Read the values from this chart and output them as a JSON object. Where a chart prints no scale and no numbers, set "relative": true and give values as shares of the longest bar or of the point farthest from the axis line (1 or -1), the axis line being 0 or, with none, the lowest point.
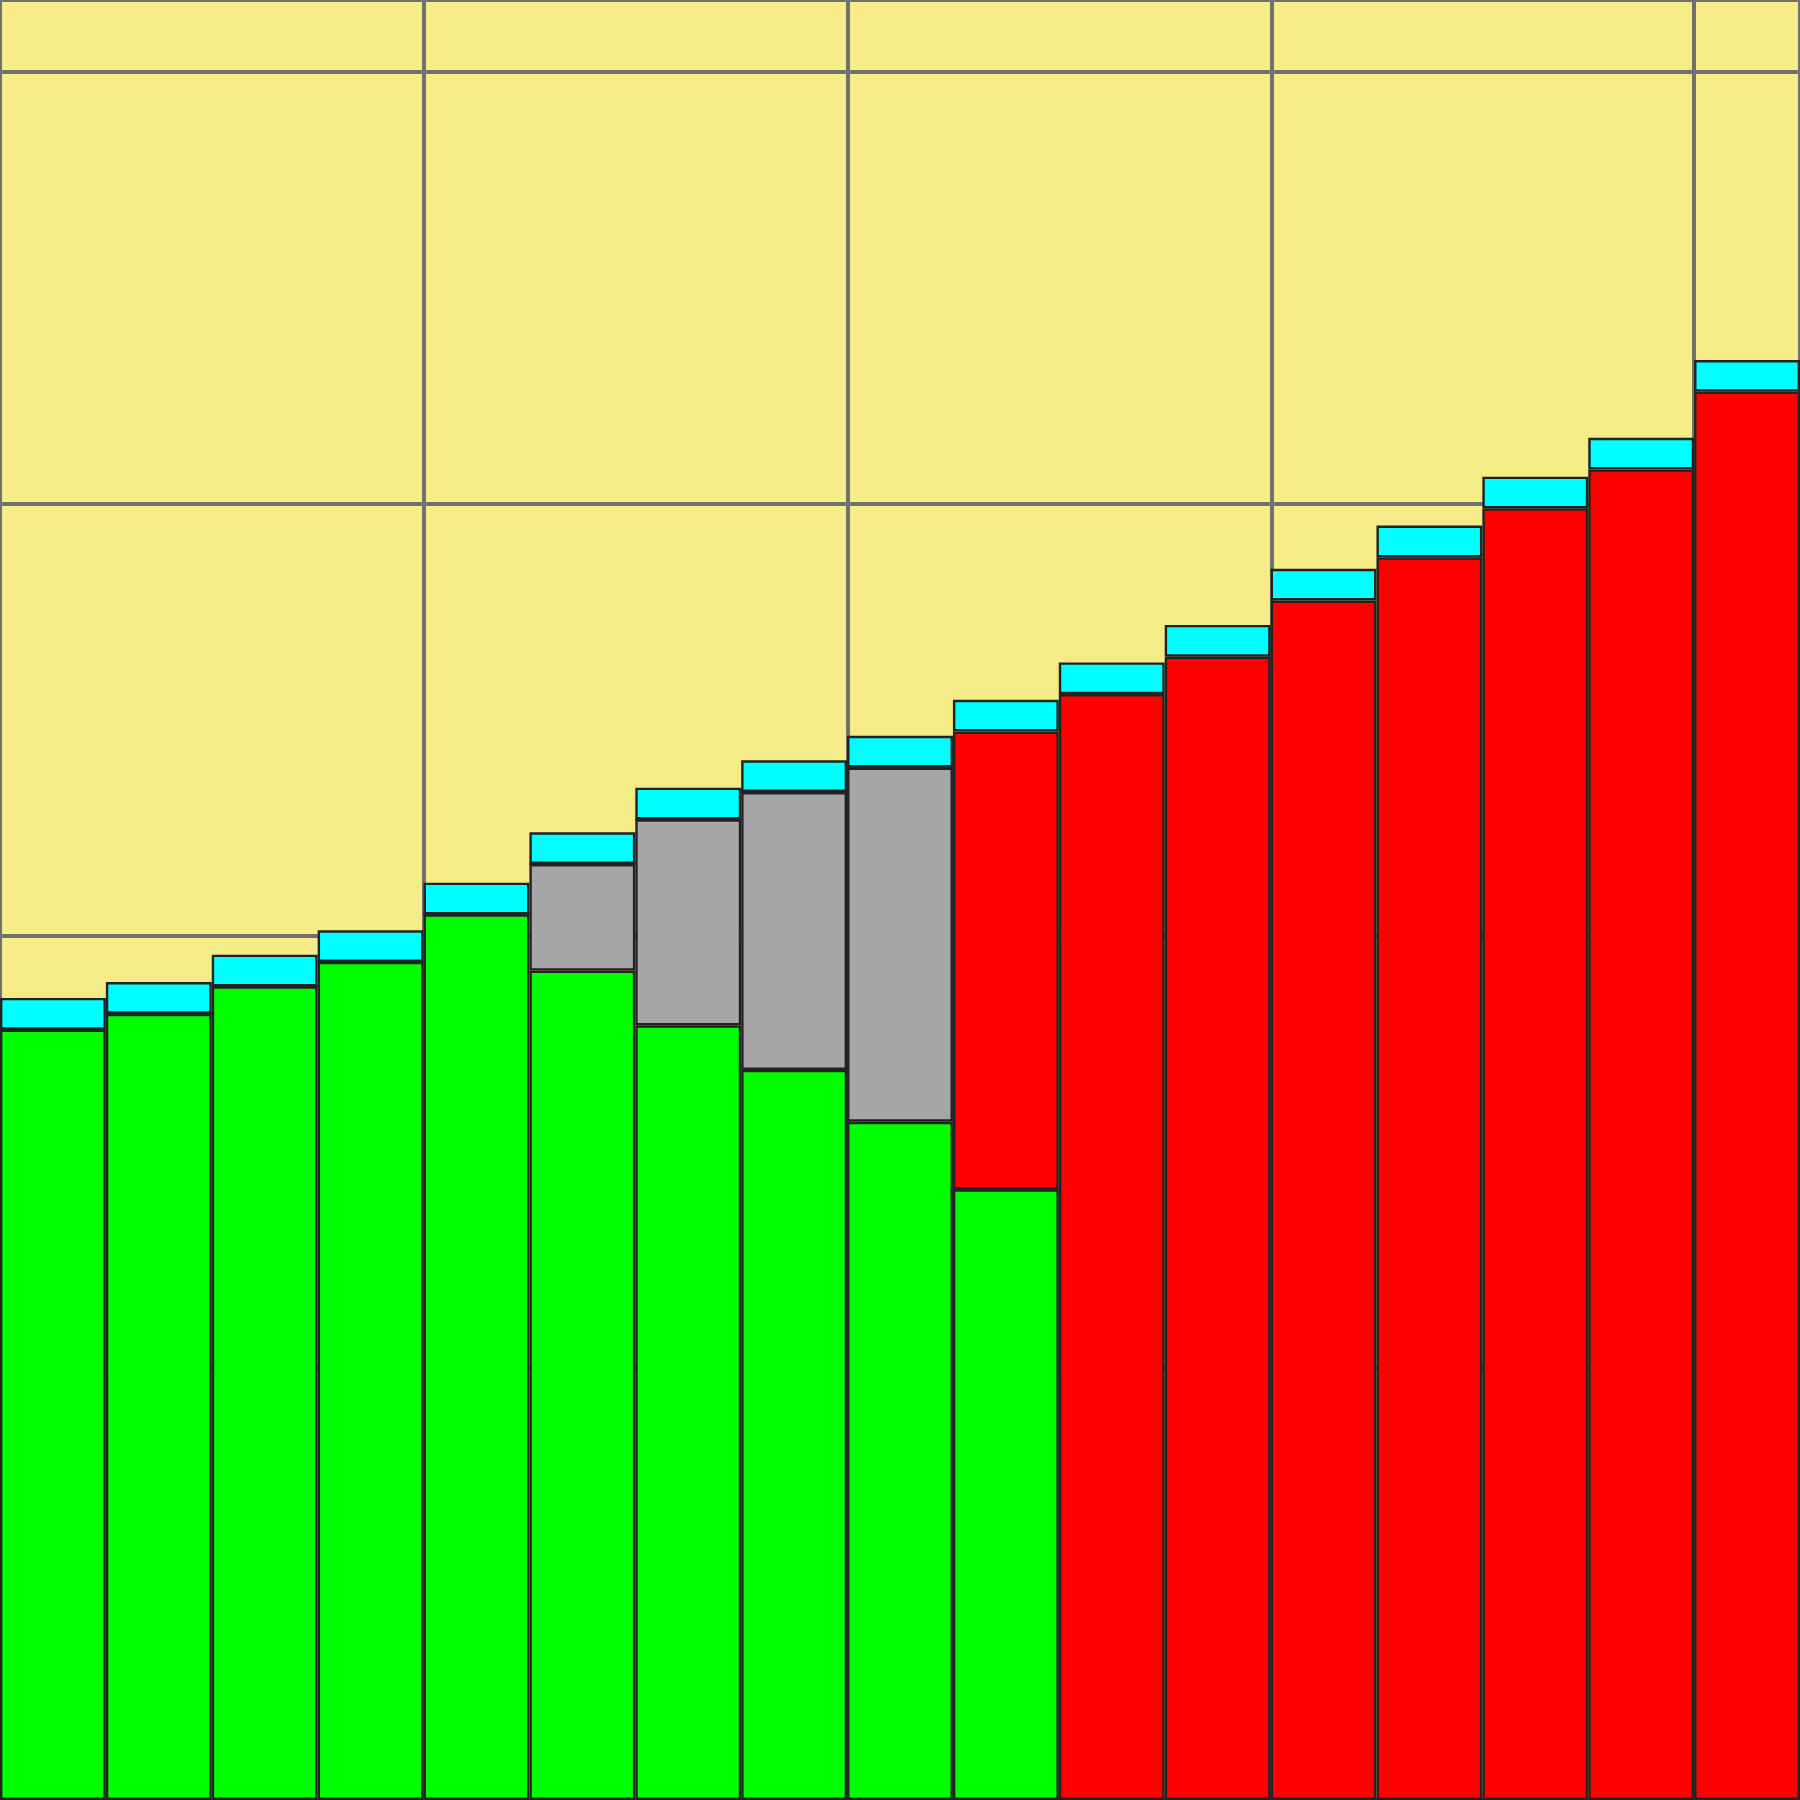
{
  "chart_data": {
    "type": "bar",
    "stacked": true,
    "relative": true,
    "grid": true,
    "categories": [
      null,
      null,
      null,
      null,
      null,
      null,
      null,
      null,
      null,
      null,
      null,
      null,
      null,
      null,
      null,
      null,
      null
    ],
    "series": [
      {
        "color": "#00ff00",
        "values": [
          0.535,
          0.546,
          0.565,
          0.582,
          0.615,
          0.576,
          0.538,
          0.507,
          0.471,
          0.424,
          0,
          0,
          0,
          0,
          0,
          0,
          0
        ]
      },
      {
        "color": "#a6a6a8",
        "values": [
          0,
          0,
          0,
          0,
          0,
          0.074,
          0.143,
          0.193,
          0.246,
          0,
          0,
          0,
          0,
          0,
          0,
          0,
          0
        ]
      },
      {
        "color": "#ff0000",
        "values": [
          0,
          0,
          0,
          0,
          0,
          0,
          0,
          0,
          0,
          0.318,
          0.768,
          0.794,
          0.833,
          0.863,
          0.897,
          0.924,
          0.978
        ]
      },
      {
        "color": "#00ffff",
        "values": [
          0.022,
          0.022,
          0.022,
          0.022,
          0.022,
          0.022,
          0.022,
          0.022,
          0.022,
          0.022,
          0.022,
          0.022,
          0.022,
          0.022,
          0.022,
          0.022,
          0.022
        ]
      }
    ]
  }
}
